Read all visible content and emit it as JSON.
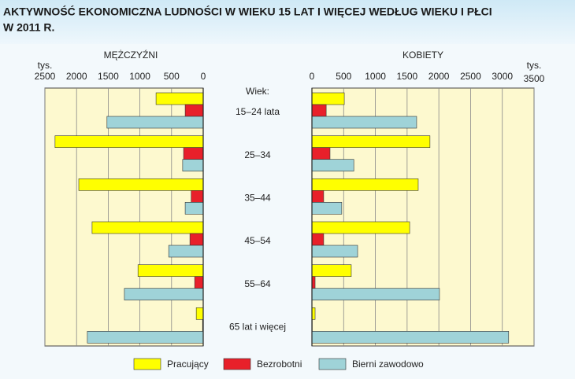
{
  "chart_data": {
    "type": "bar",
    "title": "AKTYWNOŚĆ EKONOMICZNA LUDNOŚCI W WIEKU 15 LAT I WIĘCEJ WEDŁUG WIEKU I PŁCI",
    "subtitle": "W 2011 R.",
    "category_label": "Wiek:",
    "categories": [
      "15–24 lata",
      "25–34",
      "35–44",
      "45–54",
      "55–64",
      "65 lat i więcej"
    ],
    "series": [
      {
        "name": "Pracujący",
        "color": "#ffff00"
      },
      {
        "name": "Bezrobotni",
        "color": "#e8202a"
      },
      {
        "name": "Bierni zawodowo",
        "color": "#9fd3d8"
      }
    ],
    "grid": true,
    "panels": [
      {
        "title": "MĘŻCZYŹNI",
        "unit": "tys.",
        "xlim": [
          2500,
          0
        ],
        "xticks": [
          2500,
          2000,
          1500,
          1000,
          500,
          0
        ],
        "values": [
          [
            745,
            2340,
            1965,
            1755,
            1030,
            110
          ],
          [
            285,
            310,
            190,
            210,
            135,
            10
          ],
          [
            1520,
            325,
            285,
            545,
            1245,
            1830
          ]
        ]
      },
      {
        "title": "KOBIETY",
        "unit": "tys.",
        "xlim": [
          0,
          3500
        ],
        "xticks": [
          0,
          500,
          1000,
          1500,
          2000,
          2500,
          3000,
          3500
        ],
        "values": [
          [
            510,
            1860,
            1675,
            1540,
            620,
            50
          ],
          [
            225,
            285,
            185,
            185,
            50,
            5
          ],
          [
            1650,
            660,
            470,
            720,
            2010,
            3100
          ]
        ]
      }
    ]
  }
}
